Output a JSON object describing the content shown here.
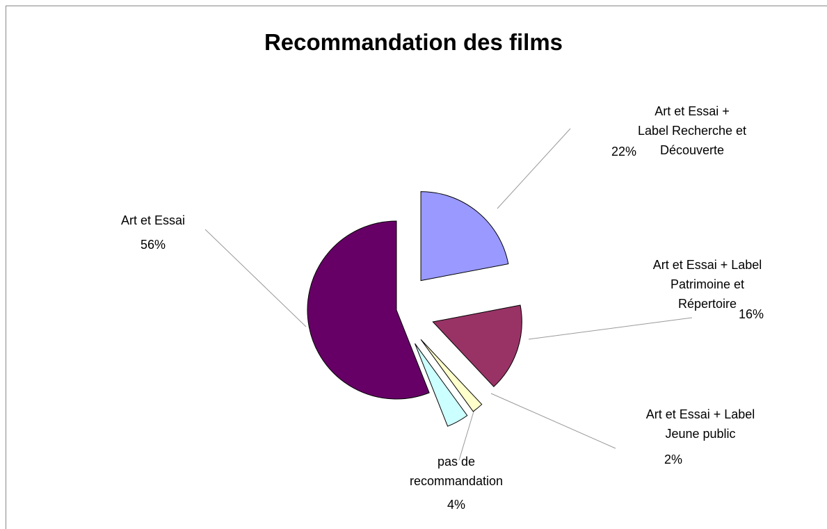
{
  "chart_data": {
    "type": "pie",
    "title": "Recommandation des films",
    "categories": [
      "Art et Essai +\nLabel Recherche et Découverte",
      "Art et Essai + Label\nPatrimoine et Répertoire",
      "Art et Essai + Label\nJeune public",
      "pas de\nrecommandation",
      "Art et Essai"
    ],
    "values": [
      22,
      16,
      2,
      4,
      56
    ],
    "value_labels": [
      "22%",
      "16%",
      "2%",
      "4%",
      "56%"
    ],
    "colors": [
      "#9999ff",
      "#993366",
      "#ffffcc",
      "#ccffff",
      "#660066"
    ]
  }
}
